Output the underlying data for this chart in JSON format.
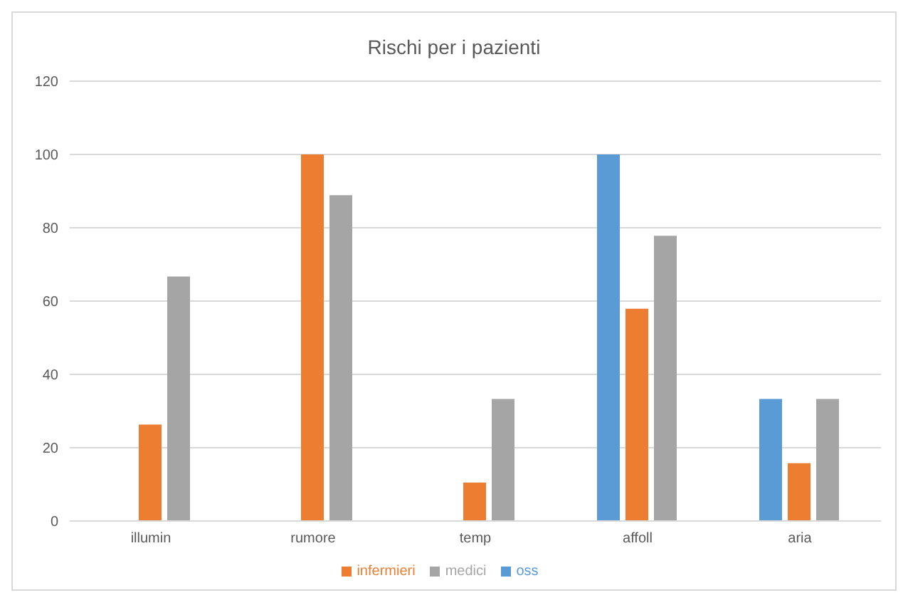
{
  "chart_data": {
    "type": "bar",
    "title": "Rischi per i pazienti",
    "categories": [
      "illumin",
      "rumore",
      "temp",
      "affoll",
      "aria"
    ],
    "series": [
      {
        "name": "oss",
        "color": "#5b9bd5",
        "values": [
          0,
          0,
          0,
          100,
          33.3
        ]
      },
      {
        "name": "infermieri",
        "color": "#ed7d31",
        "values": [
          26.3,
          100,
          10.5,
          57.9,
          15.8
        ]
      },
      {
        "name": "medici",
        "color": "#a5a5a5",
        "values": [
          66.7,
          88.9,
          33.3,
          77.8,
          33.3
        ]
      }
    ],
    "ylim": [
      0,
      120
    ],
    "yticks": [
      0,
      20,
      40,
      60,
      80,
      100,
      120
    ],
    "grid": "y",
    "legend": "bottom"
  }
}
